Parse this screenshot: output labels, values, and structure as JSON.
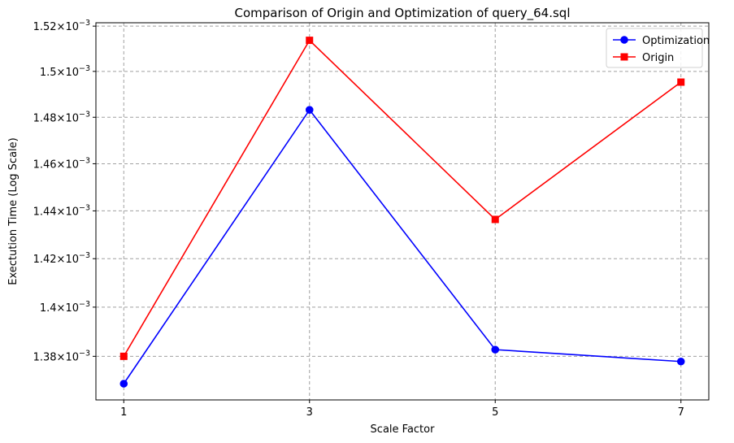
{
  "chart_data": {
    "type": "line",
    "title": "Comparison of Origin and Optimization of query_64.sql",
    "xlabel": "Scale Factor",
    "ylabel": "Exectution Time (Log Scale)",
    "x": [
      1,
      3,
      5,
      7
    ],
    "xticks": [
      "1",
      "3",
      "5",
      "7"
    ],
    "xlim": [
      0.7,
      7.3
    ],
    "ylim": [
      1.3625,
      1.5215
    ],
    "yscale": "log",
    "y_multiplier_label": "10",
    "y_exponent_label": "−3",
    "yticks": [
      {
        "value": 1.38,
        "mantissa": "1.38"
      },
      {
        "value": 1.4,
        "mantissa": "1.4"
      },
      {
        "value": 1.42,
        "mantissa": "1.42"
      },
      {
        "value": 1.44,
        "mantissa": "1.44"
      },
      {
        "value": 1.46,
        "mantissa": "1.46"
      },
      {
        "value": 1.48,
        "mantissa": "1.48"
      },
      {
        "value": 1.5,
        "mantissa": "1.5"
      },
      {
        "value": 1.52,
        "mantissa": "1.52"
      }
    ],
    "grid": true,
    "legend_position": "top-right",
    "series": [
      {
        "name": "Optimization",
        "values": [
          1.369,
          1.4832,
          1.3827,
          1.3779
        ],
        "color": "#0000ff",
        "marker": "circle"
      },
      {
        "name": "Origin",
        "values": [
          1.38,
          1.5137,
          1.4364,
          1.4953
        ],
        "color": "#ff0000",
        "marker": "square"
      }
    ]
  }
}
